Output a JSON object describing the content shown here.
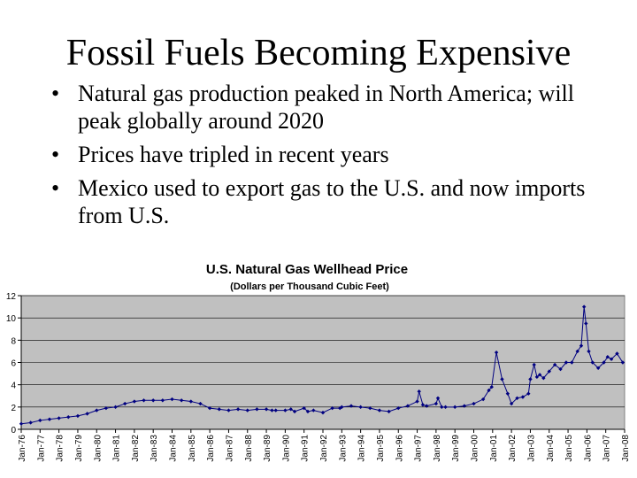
{
  "slide": {
    "title": "Fossil Fuels Becoming Expensive",
    "bullets": [
      "Natural gas production peaked in North America; will peak globally around 2020",
      "Prices have tripled in recent years",
      "Mexico used to export gas to the U.S. and now imports from U.S."
    ]
  },
  "chart_data": {
    "type": "line",
    "title": "U.S. Natural Gas Wellhead Price",
    "subtitle": "(Dollars per Thousand Cubic Feet)",
    "xlabel": "",
    "ylabel": "",
    "ylim": [
      0,
      12
    ],
    "yticks": [
      "0",
      "2",
      "4",
      "6",
      "8",
      "10",
      "12"
    ],
    "categories": [
      "Jan-76",
      "Jan-77",
      "Jan-78",
      "Jan-79",
      "Jan-80",
      "Jan-81",
      "Jan-82",
      "Jan-83",
      "Jan-84",
      "Jan-85",
      "Jan-86",
      "Jan-87",
      "Jan-88",
      "Jan-89",
      "Jan-90",
      "Jan-91",
      "Jan-92",
      "Jan-93",
      "Jan-94",
      "Jan-95",
      "Jan-96",
      "Jan-97",
      "Jan-98",
      "Jan-99",
      "Jan-00",
      "Jan-01",
      "Jan-02",
      "Jan-03",
      "Jan-04",
      "Jan-05",
      "Jan-06",
      "Jan-07",
      "Jan-08"
    ],
    "grid": true,
    "colors": {
      "plot_bg": "#c0c0c0",
      "series": "#000080"
    },
    "series": [
      {
        "name": "Wellhead Price",
        "x": [
          1976.0,
          1976.5,
          1977.0,
          1977.5,
          1978.0,
          1978.5,
          1979.0,
          1979.5,
          1980.0,
          1980.5,
          1981.0,
          1981.5,
          1982.0,
          1982.5,
          1983.0,
          1983.5,
          1984.0,
          1984.5,
          1985.0,
          1985.5,
          1986.0,
          1986.5,
          1987.0,
          1987.5,
          1988.0,
          1988.5,
          1989.0,
          1989.3,
          1989.5,
          1990.0,
          1990.3,
          1990.5,
          1991.0,
          1991.2,
          1991.5,
          1992.0,
          1992.5,
          1992.9,
          1993.0,
          1993.5,
          1994.0,
          1994.5,
          1995.0,
          1995.5,
          1996.0,
          1996.5,
          1997.0,
          1997.1,
          1997.3,
          1997.5,
          1998.0,
          1998.1,
          1998.3,
          1998.5,
          1999.0,
          1999.5,
          2000.0,
          2000.5,
          2000.8,
          2000.95,
          2001.2,
          2001.5,
          2001.8,
          2002.0,
          2002.3,
          2002.6,
          2002.9,
          2003.0,
          2003.2,
          2003.35,
          2003.5,
          2003.7,
          2004.0,
          2004.3,
          2004.6,
          2004.9,
          2005.2,
          2005.5,
          2005.7,
          2005.85,
          2005.95,
          2006.1,
          2006.3,
          2006.6,
          2006.9,
          2007.1,
          2007.3,
          2007.6,
          2007.9
        ],
        "values": [
          0.5,
          0.6,
          0.8,
          0.9,
          1.0,
          1.1,
          1.2,
          1.4,
          1.7,
          1.9,
          2.0,
          2.3,
          2.5,
          2.6,
          2.6,
          2.6,
          2.7,
          2.6,
          2.5,
          2.3,
          1.9,
          1.8,
          1.7,
          1.8,
          1.7,
          1.8,
          1.8,
          1.7,
          1.7,
          1.7,
          1.8,
          1.6,
          1.9,
          1.6,
          1.7,
          1.5,
          1.9,
          1.9,
          2.0,
          2.1,
          2.0,
          1.9,
          1.7,
          1.6,
          1.9,
          2.1,
          2.5,
          3.4,
          2.2,
          2.1,
          2.3,
          2.8,
          2.0,
          2.0,
          2.0,
          2.1,
          2.3,
          2.7,
          3.5,
          3.8,
          6.9,
          4.5,
          3.2,
          2.3,
          2.8,
          2.9,
          3.2,
          4.5,
          5.8,
          4.7,
          4.9,
          4.6,
          5.2,
          5.8,
          5.4,
          6.0,
          6.0,
          7.0,
          7.5,
          11.0,
          9.5,
          7.0,
          6.0,
          5.5,
          6.0,
          6.5,
          6.3,
          6.8,
          6.0
        ]
      }
    ]
  }
}
